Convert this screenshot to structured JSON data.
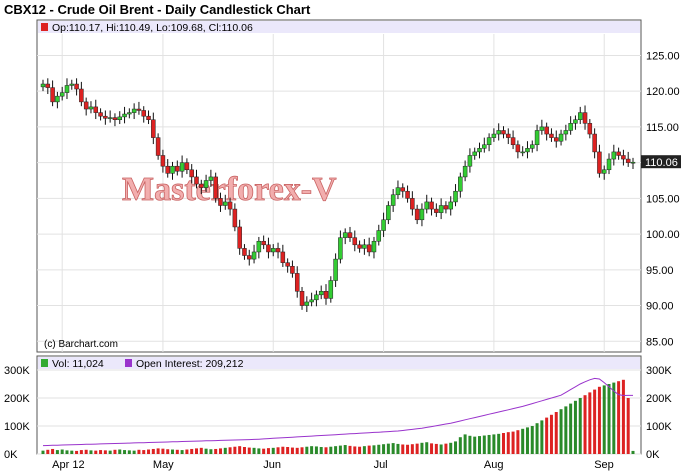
{
  "chart_data": {
    "type": "candlestick",
    "title": "CBX12 - Crude Oil Brent - Daily Candlestick Chart",
    "legend_price": "Op:110.17, Hi:110.49, Lo:109.68, Cl:110.06",
    "legend_volume": "Vol: 11,024",
    "legend_oi": "Open Interest: 209,212",
    "copyright": "(c) Barchart.com",
    "watermark": "Masterforex-V",
    "last_price_label": "110.06",
    "price_axis": {
      "ylim": [
        83.5,
        128.0
      ],
      "ticks": [
        85,
        90,
        95,
        100,
        105,
        110,
        115,
        120,
        125
      ],
      "tick_labels": [
        "85.00",
        "90.00",
        "95.00",
        "100.00",
        "105.00",
        "110.00",
        "115.00",
        "120.00",
        "125.00"
      ]
    },
    "volume_axis": {
      "ylim": [
        0,
        300000
      ],
      "ticks": [
        0,
        100000,
        200000,
        300000
      ],
      "tick_labels": [
        "0K",
        "100K",
        "200K",
        "300K"
      ]
    },
    "x_axis": {
      "month_labels": [
        "Apr 12",
        "May",
        "Jun",
        "Jul",
        "Aug",
        "Sep"
      ],
      "month_index": [
        4,
        25,
        48,
        71,
        94,
        117
      ]
    },
    "colors": {
      "up": "#33cc33",
      "down": "#dd2222",
      "oi_line": "#9933cc",
      "legend_bar": "#ebe8fb",
      "price_tag": "#222222"
    },
    "grid": true,
    "close": [
      121.0,
      120.5,
      118.5,
      119.3,
      119.8,
      120.8,
      121.0,
      120.3,
      118.5,
      117.5,
      117.8,
      117.0,
      116.5,
      116.2,
      116.3,
      116.0,
      116.4,
      116.8,
      117.0,
      117.5,
      117.3,
      116.5,
      116.0,
      113.5,
      111.0,
      109.5,
      108.5,
      109.5,
      108.8,
      110.0,
      109.0,
      108.0,
      107.0,
      106.5,
      107.5,
      108.0,
      105.0,
      104.0,
      104.5,
      103.5,
      101.0,
      98.0,
      97.0,
      96.5,
      97.5,
      99.0,
      98.5,
      97.5,
      98.0,
      97.5,
      96.0,
      95.5,
      94.5,
      92.0,
      90.0,
      90.5,
      90.8,
      91.5,
      92.0,
      91.0,
      93.5,
      96.5,
      99.5,
      100.2,
      99.5,
      98.5,
      98.0,
      98.5,
      97.5,
      99.0,
      100.5,
      102.0,
      104.0,
      105.5,
      106.5,
      106.0,
      105.0,
      103.5,
      102.0,
      103.5,
      104.5,
      103.5,
      103.0,
      104.0,
      103.5,
      104.5,
      106.0,
      108.0,
      109.5,
      111.0,
      111.5,
      112.0,
      112.5,
      113.5,
      114.0,
      114.5,
      114.0,
      113.5,
      112.5,
      111.5,
      111.5,
      112.0,
      112.5,
      114.5,
      115.0,
      114.0,
      113.5,
      113.0,
      114.0,
      114.5,
      115.5,
      116.0,
      117.0,
      115.5,
      114.0,
      111.5,
      108.5,
      109.0,
      110.5,
      111.5,
      111.0,
      110.5,
      110.0,
      110.06
    ],
    "volume": [
      12000,
      15000,
      18000,
      14000,
      16000,
      13000,
      12000,
      11000,
      14000,
      15000,
      13000,
      12000,
      14000,
      13000,
      12000,
      15000,
      16000,
      14000,
      13000,
      12000,
      15000,
      14000,
      16000,
      18000,
      20000,
      19000,
      17000,
      16000,
      15000,
      14000,
      16000,
      18000,
      20000,
      22000,
      19000,
      17000,
      18000,
      20000,
      22000,
      24000,
      26000,
      28000,
      25000,
      23000,
      22000,
      20000,
      19000,
      21000,
      22000,
      24000,
      26000,
      25000,
      23000,
      22000,
      24000,
      26000,
      28000,
      27000,
      25000,
      24000,
      26000,
      28000,
      30000,
      32000,
      29000,
      27000,
      26000,
      28000,
      30000,
      31000,
      33000,
      35000,
      37000,
      39000,
      36000,
      34000,
      33000,
      35000,
      37000,
      40000,
      42000,
      38000,
      36000,
      34000,
      37000,
      40000,
      45000,
      60000,
      70000,
      65000,
      62000,
      64000,
      66000,
      68000,
      70000,
      72000,
      75000,
      78000,
      80000,
      85000,
      90000,
      95000,
      100000,
      110000,
      120000,
      130000,
      140000,
      150000,
      160000,
      170000,
      180000,
      190000,
      200000,
      210000,
      220000,
      230000,
      240000,
      245000,
      250000,
      255000,
      260000,
      265000,
      200000,
      11024
    ],
    "open_interest": [
      30000,
      30500,
      31000,
      31500,
      32000,
      32500,
      33000,
      33500,
      34000,
      34500,
      35000,
      35500,
      36000,
      36500,
      37000,
      37500,
      38000,
      38500,
      39000,
      39500,
      40000,
      40500,
      41000,
      41500,
      42000,
      42500,
      43000,
      43500,
      44000,
      44500,
      45000,
      45500,
      46000,
      46500,
      47000,
      47500,
      48000,
      48500,
      49000,
      49500,
      50000,
      50500,
      51000,
      51500,
      52000,
      53000,
      54000,
      55000,
      56000,
      57000,
      58000,
      59000,
      60000,
      61000,
      62000,
      63000,
      64000,
      65000,
      66000,
      67000,
      68000,
      69000,
      70000,
      71000,
      72000,
      73000,
      74000,
      75000,
      76000,
      77000,
      78000,
      79000,
      80000,
      81000,
      82000,
      84000,
      86000,
      88000,
      90000,
      92000,
      95000,
      98000,
      101000,
      104000,
      107000,
      110000,
      114000,
      118000,
      122000,
      126000,
      130000,
      134000,
      138000,
      142000,
      146000,
      150000,
      154000,
      158000,
      162000,
      166000,
      170000,
      175000,
      180000,
      185000,
      190000,
      195000,
      200000,
      205000,
      210000,
      220000,
      230000,
      240000,
      250000,
      258000,
      265000,
      270000,
      268000,
      255000,
      240000,
      225000,
      212000,
      209000,
      209212,
      209212
    ]
  }
}
